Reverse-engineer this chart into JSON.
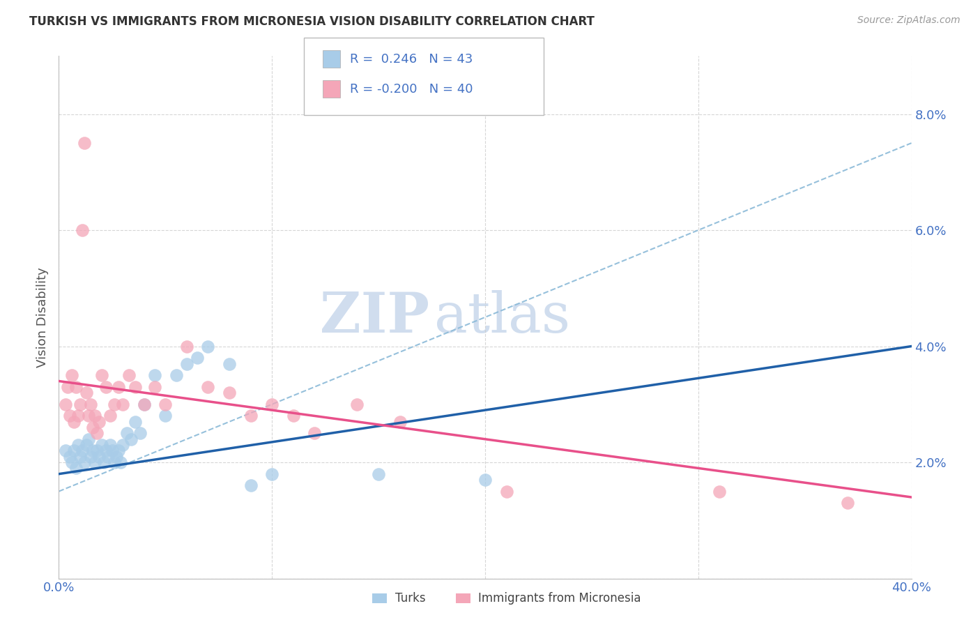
{
  "title": "TURKISH VS IMMIGRANTS FROM MICRONESIA VISION DISABILITY CORRELATION CHART",
  "source": "Source: ZipAtlas.com",
  "ylabel": "Vision Disability",
  "xlim": [
    0.0,
    0.4
  ],
  "ylim": [
    0.0,
    0.09
  ],
  "r_turks": 0.246,
  "n_turks": 43,
  "r_micronesia": -0.2,
  "n_micronesia": 40,
  "color_turks": "#A8CCE8",
  "color_micronesia": "#F4A6B8",
  "line_color_turks_solid": "#2060A8",
  "line_color_turks_dash": "#8BBAD8",
  "line_color_micronesia": "#E8508A",
  "background_color": "#FFFFFF",
  "grid_color": "#CCCCCC",
  "title_color": "#333333",
  "axis_label_color": "#555555",
  "legend_text_color": "#4472C4",
  "watermark_zip": "ZIP",
  "watermark_atlas": "atlas",
  "turks_x": [
    0.003,
    0.005,
    0.006,
    0.007,
    0.008,
    0.009,
    0.01,
    0.011,
    0.012,
    0.013,
    0.014,
    0.015,
    0.016,
    0.017,
    0.018,
    0.019,
    0.02,
    0.021,
    0.022,
    0.023,
    0.024,
    0.025,
    0.026,
    0.027,
    0.028,
    0.029,
    0.03,
    0.032,
    0.034,
    0.036,
    0.038,
    0.04,
    0.045,
    0.05,
    0.055,
    0.06,
    0.065,
    0.07,
    0.08,
    0.09,
    0.1,
    0.15,
    0.2
  ],
  "turks_y": [
    0.022,
    0.021,
    0.02,
    0.022,
    0.019,
    0.023,
    0.021,
    0.022,
    0.02,
    0.023,
    0.024,
    0.021,
    0.022,
    0.02,
    0.022,
    0.021,
    0.023,
    0.02,
    0.022,
    0.021,
    0.023,
    0.022,
    0.02,
    0.021,
    0.022,
    0.02,
    0.023,
    0.025,
    0.024,
    0.027,
    0.025,
    0.03,
    0.035,
    0.028,
    0.035,
    0.037,
    0.038,
    0.04,
    0.037,
    0.016,
    0.018,
    0.018,
    0.017
  ],
  "micronesia_x": [
    0.003,
    0.004,
    0.005,
    0.006,
    0.007,
    0.008,
    0.009,
    0.01,
    0.011,
    0.012,
    0.013,
    0.014,
    0.015,
    0.016,
    0.017,
    0.018,
    0.019,
    0.02,
    0.022,
    0.024,
    0.026,
    0.028,
    0.03,
    0.033,
    0.036,
    0.04,
    0.045,
    0.05,
    0.06,
    0.07,
    0.08,
    0.09,
    0.1,
    0.11,
    0.12,
    0.14,
    0.16,
    0.21,
    0.31,
    0.37
  ],
  "micronesia_y": [
    0.03,
    0.033,
    0.028,
    0.035,
    0.027,
    0.033,
    0.028,
    0.03,
    0.06,
    0.075,
    0.032,
    0.028,
    0.03,
    0.026,
    0.028,
    0.025,
    0.027,
    0.035,
    0.033,
    0.028,
    0.03,
    0.033,
    0.03,
    0.035,
    0.033,
    0.03,
    0.033,
    0.03,
    0.04,
    0.033,
    0.032,
    0.028,
    0.03,
    0.028,
    0.025,
    0.03,
    0.027,
    0.015,
    0.015,
    0.013
  ]
}
